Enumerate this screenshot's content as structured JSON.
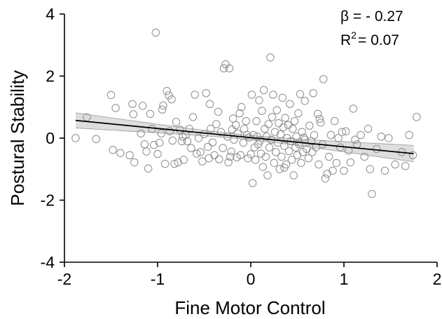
{
  "chart_data": {
    "type": "scatter",
    "xlabel": "Fine Motor Control",
    "ylabel": "Postural Stability",
    "xlim": [
      -2,
      2
    ],
    "ylim": [
      -4,
      4
    ],
    "xticks": [
      "-2",
      "-1",
      "0",
      "1",
      "2"
    ],
    "yticks": [
      "-4",
      "-2",
      "0",
      "2",
      "4"
    ],
    "annotation": {
      "beta_label": "β = - 0.27",
      "r2_prefix": "R",
      "r2_sup": "2",
      "r2_suffix": "= 0.07"
    },
    "regression": {
      "x_range": [
        -1.88,
        1.75
      ],
      "y_range": [
        0.57,
        -0.5
      ],
      "ci_lower_start": 0.33,
      "ci_upper_start": 0.82,
      "ci_lower_end": -0.75,
      "ci_upper_end": -0.22
    },
    "grid": false,
    "points": [
      [
        -1.88,
        0.0
      ],
      [
        -1.76,
        0.67
      ],
      [
        -1.66,
        -0.03
      ],
      [
        -1.5,
        1.39
      ],
      [
        -1.48,
        -0.38
      ],
      [
        -1.45,
        0.97
      ],
      [
        -1.4,
        -0.48
      ],
      [
        -1.3,
        -0.55
      ],
      [
        -1.27,
        1.1
      ],
      [
        -1.26,
        0.77
      ],
      [
        -1.25,
        -0.78
      ],
      [
        -1.18,
        0.15
      ],
      [
        -1.16,
        1.04
      ],
      [
        -1.14,
        -0.2
      ],
      [
        -1.12,
        -0.43
      ],
      [
        -1.1,
        -0.98
      ],
      [
        -1.08,
        0.78
      ],
      [
        -1.06,
        0.3
      ],
      [
        -1.04,
        -0.22
      ],
      [
        -1.02,
        3.4
      ],
      [
        -1.0,
        -0.51
      ],
      [
        -0.98,
        -0.15
      ],
      [
        -0.96,
        0.15
      ],
      [
        -0.95,
        0.92
      ],
      [
        -0.94,
        1.05
      ],
      [
        -0.92,
        -0.83
      ],
      [
        -0.9,
        1.52
      ],
      [
        -0.88,
        1.38
      ],
      [
        -0.87,
        0.22
      ],
      [
        -0.85,
        1.25
      ],
      [
        -0.84,
        -0.08
      ],
      [
        -0.82,
        -0.83
      ],
      [
        -0.8,
        0.52
      ],
      [
        -0.78,
        -0.78
      ],
      [
        -0.76,
        0.27
      ],
      [
        -0.74,
        -0.1
      ],
      [
        -0.73,
        0.05
      ],
      [
        -0.72,
        -0.7
      ],
      [
        -0.7,
        0.1
      ],
      [
        -0.66,
        0.3
      ],
      [
        -0.64,
        -0.32
      ],
      [
        -0.62,
        0.68
      ],
      [
        -0.6,
        1.4
      ],
      [
        -0.58,
        -0.5
      ],
      [
        -0.56,
        0.0
      ],
      [
        -0.54,
        -0.45
      ],
      [
        -0.52,
        -0.75
      ],
      [
        -0.5,
        0.13
      ],
      [
        -0.48,
        1.45
      ],
      [
        -0.46,
        -0.28
      ],
      [
        -0.45,
        -0.65
      ],
      [
        -0.43,
        0.3
      ],
      [
        -0.41,
        -0.14
      ],
      [
        -0.39,
        -0.55
      ],
      [
        -0.37,
        0.45
      ],
      [
        -0.35,
        0.85
      ],
      [
        -0.34,
        -0.68
      ],
      [
        -0.32,
        0.2
      ],
      [
        -0.3,
        -0.32
      ],
      [
        -0.29,
        2.25
      ],
      [
        -0.27,
        2.38
      ],
      [
        -0.25,
        0.05
      ],
      [
        -0.24,
        -0.78
      ],
      [
        -0.23,
        2.25
      ],
      [
        -0.21,
        -0.43
      ],
      [
        -0.2,
        0.28
      ],
      [
        -0.19,
        0.63
      ],
      [
        -0.18,
        -0.05
      ],
      [
        -0.16,
        0.42
      ],
      [
        -0.15,
        -0.62
      ],
      [
        -0.14,
        0.15
      ],
      [
        -0.12,
        0.8
      ],
      [
        -0.11,
        -0.55
      ],
      [
        -0.1,
        1.0
      ],
      [
        -0.08,
        -0.15
      ],
      [
        -0.07,
        0.3
      ],
      [
        -0.05,
        0.55
      ],
      [
        -0.04,
        0.1
      ],
      [
        -0.03,
        -0.65
      ],
      [
        -0.02,
        0.02
      ],
      [
        0.0,
        -0.52
      ],
      [
        0.01,
        1.4
      ],
      [
        0.02,
        -1.45
      ],
      [
        0.03,
        0.1
      ],
      [
        0.04,
        -0.3
      ],
      [
        0.05,
        -0.7
      ],
      [
        0.06,
        0.55
      ],
      [
        0.07,
        0.05
      ],
      [
        0.08,
        -0.2
      ],
      [
        0.09,
        1.22
      ],
      [
        0.1,
        -0.08
      ],
      [
        0.11,
        -0.5
      ],
      [
        0.12,
        0.88
      ],
      [
        0.13,
        -0.93
      ],
      [
        0.14,
        1.55
      ],
      [
        0.15,
        0.3
      ],
      [
        0.16,
        -0.6
      ],
      [
        0.17,
        0.05
      ],
      [
        0.18,
        -1.2
      ],
      [
        0.19,
        0.45
      ],
      [
        0.2,
        -0.3
      ],
      [
        0.21,
        2.6
      ],
      [
        0.22,
        -0.05
      ],
      [
        0.23,
        0.68
      ],
      [
        0.24,
        1.4
      ],
      [
        0.25,
        -0.8
      ],
      [
        0.26,
        0.2
      ],
      [
        0.27,
        -0.45
      ],
      [
        0.28,
        0.9
      ],
      [
        0.29,
        -0.15
      ],
      [
        0.3,
        0.48
      ],
      [
        0.31,
        -1.0
      ],
      [
        0.32,
        0.12
      ],
      [
        0.33,
        -0.6
      ],
      [
        0.34,
        1.3
      ],
      [
        0.35,
        0.35
      ],
      [
        0.36,
        -0.25
      ],
      [
        0.37,
        0.65
      ],
      [
        0.38,
        -0.85
      ],
      [
        0.39,
        0.0
      ],
      [
        0.4,
        0.42
      ],
      [
        0.41,
        -0.42
      ],
      [
        0.42,
        1.1
      ],
      [
        0.43,
        -0.1
      ],
      [
        0.44,
        -0.7
      ],
      [
        0.45,
        0.3
      ],
      [
        0.46,
        -1.2
      ],
      [
        0.47,
        0.55
      ],
      [
        0.48,
        -0.3
      ],
      [
        0.49,
        0.05
      ],
      [
        0.5,
        -0.55
      ],
      [
        0.51,
        0.8
      ],
      [
        0.52,
        -0.2
      ],
      [
        0.53,
        1.42
      ],
      [
        0.54,
        -0.8
      ],
      [
        0.55,
        0.2
      ],
      [
        0.56,
        -0.45
      ],
      [
        0.57,
        0.02
      ],
      [
        0.58,
        1.2
      ],
      [
        0.6,
        -0.35
      ],
      [
        0.62,
        -0.65
      ],
      [
        0.63,
        0.4
      ],
      [
        0.65,
        -0.1
      ],
      [
        0.66,
        -0.45
      ],
      [
        0.67,
        1.45
      ],
      [
        0.68,
        0.1
      ],
      [
        0.7,
        -0.3
      ],
      [
        0.72,
        0.78
      ],
      [
        0.73,
        -0.85
      ],
      [
        0.75,
        0.5
      ],
      [
        0.77,
        -0.2
      ],
      [
        0.78,
        1.9
      ],
      [
        0.8,
        -1.3
      ],
      [
        0.82,
        -1.15
      ],
      [
        0.84,
        -0.6
      ],
      [
        0.86,
        0.1
      ],
      [
        0.88,
        -1.05
      ],
      [
        0.9,
        0.55
      ],
      [
        0.92,
        -0.8
      ],
      [
        0.94,
        0.0
      ],
      [
        0.96,
        -0.3
      ],
      [
        0.98,
        0.2
      ],
      [
        1.0,
        -1.05
      ],
      [
        1.02,
        0.22
      ],
      [
        1.05,
        -0.4
      ],
      [
        1.07,
        -0.78
      ],
      [
        1.1,
        0.95
      ],
      [
        1.14,
        -0.2
      ],
      [
        1.18,
        0.1
      ],
      [
        1.22,
        -0.6
      ],
      [
        1.26,
        0.3
      ],
      [
        1.28,
        -1.0
      ],
      [
        1.3,
        -1.8
      ],
      [
        1.35,
        -0.35
      ],
      [
        1.4,
        0.05
      ],
      [
        1.44,
        -1.05
      ],
      [
        1.48,
        0.0
      ],
      [
        1.55,
        -0.85
      ],
      [
        1.62,
        -0.45
      ],
      [
        1.66,
        -0.9
      ],
      [
        1.7,
        0.1
      ],
      [
        1.74,
        -0.55
      ],
      [
        1.78,
        0.68
      ],
      [
        -0.68,
        -0.1
      ],
      [
        -0.44,
        1.1
      ],
      [
        -0.22,
        -0.6
      ],
      [
        0.36,
        -0.95
      ],
      [
        0.58,
        -0.05
      ],
      [
        0.74,
        0.62
      ],
      [
        1.12,
        -0.05
      ]
    ]
  }
}
